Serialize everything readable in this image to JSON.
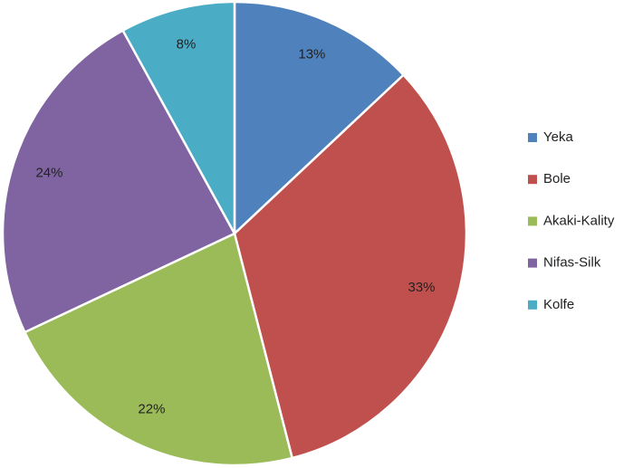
{
  "chart_data": {
    "type": "pie",
    "categories": [
      "Yeka",
      "Bole",
      "Akaki-Kality",
      "Nifas-Silk",
      "Kolfe"
    ],
    "values": [
      13,
      33,
      22,
      24,
      8
    ],
    "value_labels": [
      "13%",
      "33%",
      "22%",
      "24%",
      "8%"
    ],
    "colors": [
      "#4f81bd",
      "#c0504d",
      "#9bbb59",
      "#8064a2",
      "#4bacc6"
    ],
    "legend": "right"
  }
}
